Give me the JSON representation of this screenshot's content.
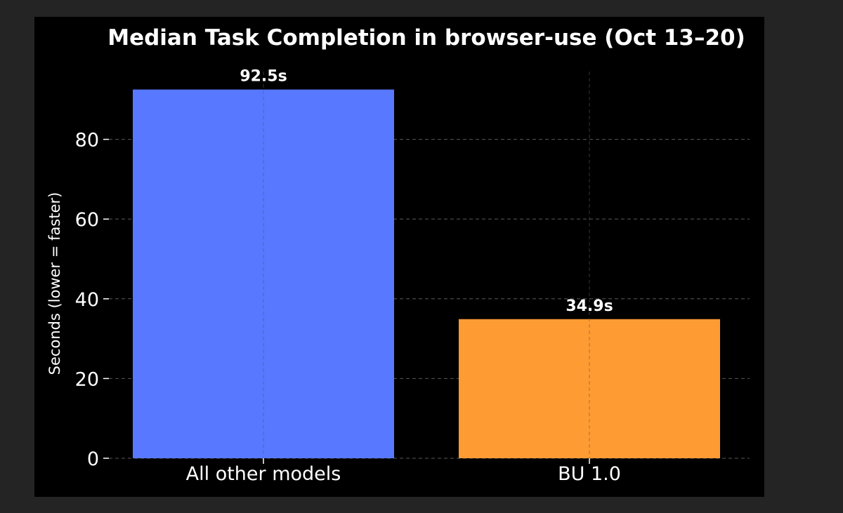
{
  "chart_data": {
    "type": "bar",
    "title": "Median Task Completion in browser-use (Oct 13–20)",
    "xlabel": "",
    "ylabel": "Seconds (lower = faster)",
    "categories": [
      "All other models",
      "BU 1.0"
    ],
    "values": [
      92.5,
      34.9
    ],
    "value_labels": [
      "92.5s",
      "34.9s"
    ],
    "colors": [
      "#5778ff",
      "#ff9b33"
    ],
    "ylim": [
      0,
      97
    ],
    "yticks": [
      0,
      20,
      40,
      60,
      80
    ],
    "ytick_labels": [
      "0",
      "20",
      "40",
      "60",
      "80"
    ],
    "grid": true,
    "background": "#000000"
  }
}
